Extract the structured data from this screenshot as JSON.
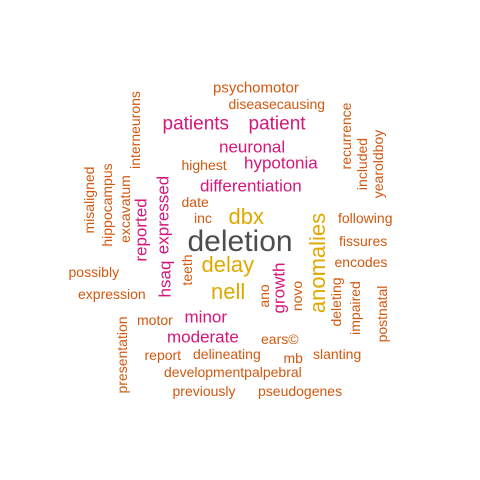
{
  "colors": {
    "gray": "#4d4d4d",
    "gold": "#e0a800",
    "magenta": "#d6167a",
    "orange": "#d2580f"
  },
  "words": [
    {
      "text": "deletion",
      "color": "gray"
    },
    {
      "text": "anomalies",
      "color": "gold"
    },
    {
      "text": "nell",
      "color": "gold"
    },
    {
      "text": "delay",
      "color": "gold"
    },
    {
      "text": "dbx",
      "color": "gold"
    },
    {
      "text": "patients",
      "color": "magenta"
    },
    {
      "text": "patient",
      "color": "magenta"
    },
    {
      "text": "neuronal",
      "color": "magenta"
    },
    {
      "text": "hypotonia",
      "color": "magenta"
    },
    {
      "text": "differentiation",
      "color": "magenta"
    },
    {
      "text": "expressed",
      "color": "magenta"
    },
    {
      "text": "reported",
      "color": "magenta"
    },
    {
      "text": "hsaq",
      "color": "magenta"
    },
    {
      "text": "growth",
      "color": "magenta"
    },
    {
      "text": "minor",
      "color": "magenta"
    },
    {
      "text": "moderate",
      "color": "magenta"
    },
    {
      "text": "psychomotor",
      "color": "orange"
    },
    {
      "text": "diseasecausing",
      "color": "orange"
    },
    {
      "text": "interneurons",
      "color": "orange"
    },
    {
      "text": "recurrence",
      "color": "orange"
    },
    {
      "text": "included",
      "color": "orange"
    },
    {
      "text": "yearoldboy",
      "color": "orange"
    },
    {
      "text": "highest",
      "color": "orange"
    },
    {
      "text": "misaligned",
      "color": "orange"
    },
    {
      "text": "hippocampus",
      "color": "orange"
    },
    {
      "text": "excavatum",
      "color": "orange"
    },
    {
      "text": "date",
      "color": "orange"
    },
    {
      "text": "inc",
      "color": "orange"
    },
    {
      "text": "following",
      "color": "orange"
    },
    {
      "text": "fissures",
      "color": "orange"
    },
    {
      "text": "encodes",
      "color": "orange"
    },
    {
      "text": "possibly",
      "color": "orange"
    },
    {
      "text": "teeth",
      "color": "orange"
    },
    {
      "text": "expression",
      "color": "orange"
    },
    {
      "text": "ano",
      "color": "orange"
    },
    {
      "text": "novo",
      "color": "orange"
    },
    {
      "text": "deleting",
      "color": "orange"
    },
    {
      "text": "impaired",
      "color": "orange"
    },
    {
      "text": "postnatal",
      "color": "orange"
    },
    {
      "text": "motor",
      "color": "orange"
    },
    {
      "text": "presentation",
      "color": "orange"
    },
    {
      "text": "ears©",
      "color": "orange"
    },
    {
      "text": "report",
      "color": "orange"
    },
    {
      "text": "delineating",
      "color": "orange"
    },
    {
      "text": "mb",
      "color": "orange"
    },
    {
      "text": "slanting",
      "color": "orange"
    },
    {
      "text": "developmentpalpebral",
      "color": "orange"
    },
    {
      "text": "previously",
      "color": "orange"
    },
    {
      "text": "pseudogenes",
      "color": "orange"
    }
  ]
}
